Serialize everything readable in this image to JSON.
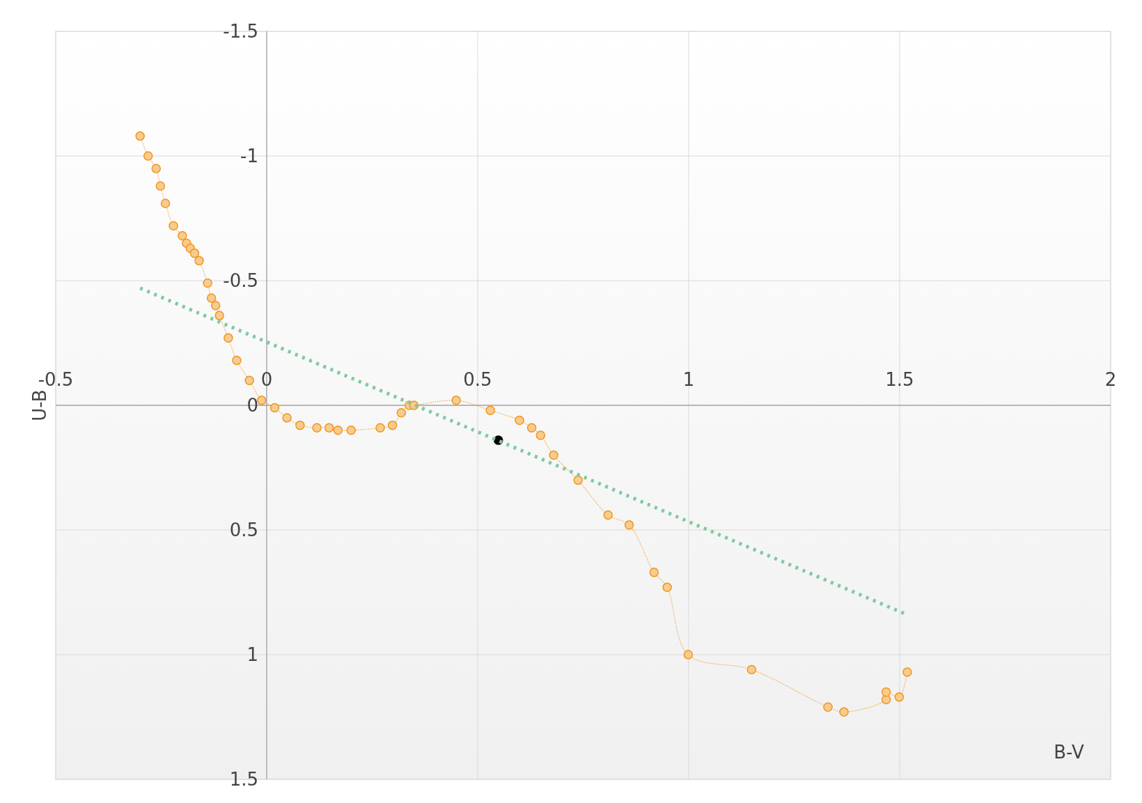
{
  "chart_data": {
    "type": "scatter",
    "xlabel": "B-V",
    "ylabel": "U-B",
    "xlim": [
      -0.5,
      2
    ],
    "ylim": [
      1.5,
      -1.5
    ],
    "xticks": [
      -0.5,
      0,
      0.5,
      1,
      1.5,
      2
    ],
    "yticks": [
      -1.5,
      -1,
      -0.5,
      0,
      0.5,
      1,
      1.5
    ],
    "grid": true,
    "series": [
      {
        "type": "line",
        "color": "#f0961e",
        "marker": "circle",
        "line_style": "dotted",
        "x": [
          -0.3,
          -0.281,
          -0.262,
          -0.252,
          -0.24,
          -0.221,
          -0.2,
          -0.19,
          -0.181,
          -0.171,
          -0.16,
          -0.14,
          -0.131,
          -0.121,
          -0.112,
          -0.091,
          -0.071,
          -0.041,
          -0.012,
          0.019,
          0.048,
          0.079,
          0.119,
          0.148,
          0.169,
          0.2,
          0.269,
          0.298,
          0.319,
          0.338,
          0.349,
          0.449,
          0.53,
          0.599,
          0.628,
          0.649,
          0.68,
          0.738,
          0.809,
          0.859,
          0.918,
          0.949,
          0.999,
          1.149,
          1.33,
          1.368,
          1.468,
          1.468,
          1.499,
          1.518
        ],
        "values": [
          -1.08,
          -1.0,
          -0.95,
          -0.88,
          -0.81,
          -0.72,
          -0.68,
          -0.65,
          -0.63,
          -0.61,
          -0.58,
          -0.49,
          -0.43,
          -0.4,
          -0.36,
          -0.27,
          -0.18,
          -0.1,
          -0.02,
          0.01,
          0.05,
          0.08,
          0.09,
          0.09,
          0.1,
          0.1,
          0.09,
          0.08,
          0.03,
          0.0,
          0.0,
          -0.02,
          0.02,
          0.06,
          0.09,
          0.12,
          0.2,
          0.3,
          0.44,
          0.48,
          0.67,
          0.73,
          1.0,
          1.06,
          1.21,
          1.23,
          1.18,
          1.15,
          1.17,
          1.07
        ]
      },
      {
        "color": "#000000",
        "marker": "circle",
        "x": [
          0.549
        ],
        "values": [
          0.14
        ]
      },
      {
        "type": "line",
        "color": "#7fc9a0",
        "marker": "none",
        "line_style": "dotted",
        "x": [
          -0.3,
          1.518
        ],
        "values": [
          -0.47,
          0.84
        ]
      }
    ]
  }
}
